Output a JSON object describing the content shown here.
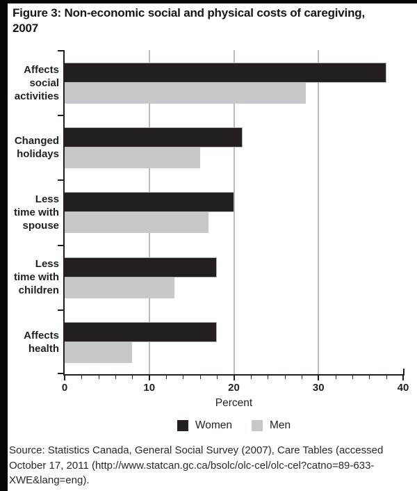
{
  "title_lines": [
    "Figure 3: Non-economic social and physical costs of caregiving,",
    "2007"
  ],
  "chart_data": {
    "type": "bar",
    "orientation": "horizontal",
    "title": "Figure 3: Non-economic social and physical costs of caregiving, 2007",
    "categories": [
      "Affects social activities",
      "Changed holidays",
      "Less time with spouse",
      "Less time with children",
      "Affects health"
    ],
    "category_label_lines": [
      [
        "Affects",
        "social",
        "activities"
      ],
      [
        "Changed",
        "holidays"
      ],
      [
        "Less",
        "time with",
        "spouse"
      ],
      [
        "Less",
        "time with",
        "children"
      ],
      [
        "Affects",
        "health"
      ]
    ],
    "series": [
      {
        "name": "Women",
        "color": "#231f20",
        "values": [
          38,
          21,
          20,
          18,
          18
        ]
      },
      {
        "name": "Men",
        "color": "#c7c8ca",
        "values": [
          28.5,
          16,
          17,
          13,
          8
        ]
      }
    ],
    "xlabel": "Percent",
    "xlim": [
      0,
      40
    ],
    "xticks": [
      0,
      10,
      20,
      30,
      40
    ],
    "xtick_labels": [
      "0",
      "10",
      "20",
      "30",
      "40"
    ],
    "minor_tick_step": 2,
    "gridlines": [
      10,
      20,
      30
    ],
    "grid_color": "#babbbd",
    "axis_color": "#231f20",
    "legend_position": "bottom"
  },
  "legend": {
    "women_label": "Women",
    "men_label": "Men"
  },
  "source_text": "Source: Statistics Canada, General Social Survey (2007), Care Tables (accessed October 17, 2011 (http://www.statcan.gc.ca/bsolc/olc-cel/olc-cel?catno=89-633-XWE&lang=eng)."
}
